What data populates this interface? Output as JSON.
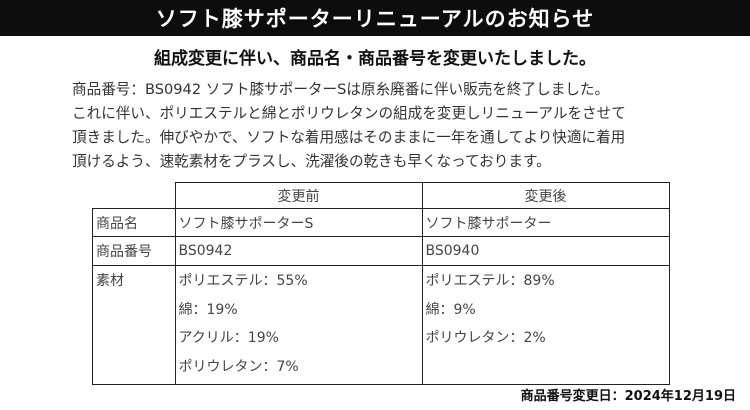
{
  "banner": {
    "title": "ソフト膝サポーターリニューアルのお知らせ"
  },
  "subtitle": "組成変更に伴い、商品名・商品番号を変更いたしました。",
  "body": {
    "lines": [
      "商品番号：BS0942 ソフト膝サポーターSは原糸廃番に伴い販売を終了しました。",
      "これに伴い、ポリエステルと綿とポリウレタンの組成を変更しリニューアルをさせて",
      "頂きました。伸びやかで、ソフトな着用感はそのままに一年を通してより快適に着用",
      "頂けるよう、速乾素材をプラスし、洗濯後の乾きも早くなっております。"
    ]
  },
  "table": {
    "headers": {
      "before": "変更前",
      "after": "変更後"
    },
    "rows": {
      "name": {
        "label": "商品名",
        "before": "ソフト膝サポーターS",
        "after": "ソフト膝サポーター"
      },
      "number": {
        "label": "商品番号",
        "before": "BS0942",
        "after": "BS0940"
      },
      "material": {
        "label": "素材",
        "before": [
          "ポリエステル：55%",
          "綿：19%",
          "アクリル：19%",
          "ポリウレタン：7%"
        ],
        "after": [
          "ポリエステル：89%",
          "綿：9%",
          "ポリウレタン：2%"
        ]
      }
    }
  },
  "footer": "商品番号変更日：2024年12月19日"
}
